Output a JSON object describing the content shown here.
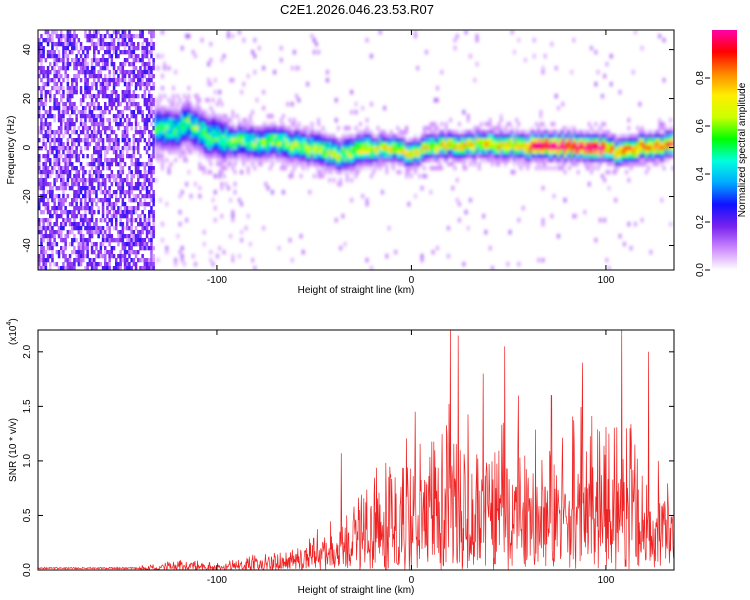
{
  "figure": {
    "title": "C2E1.2026.046.23.53.R07"
  },
  "chart_data": [
    {
      "type": "heatmap",
      "xlabel": "Height of straight line (km)",
      "ylabel": "Frequency (Hz)",
      "xlim": [
        -192,
        135
      ],
      "ylim": [
        -50,
        48
      ],
      "x_ticks": [
        -100,
        0,
        100
      ],
      "x_tick_labels": [
        "-100",
        "0",
        "100"
      ],
      "y_ticks": [
        -40,
        -20,
        0,
        20,
        40
      ],
      "y_tick_labels": [
        "-40",
        "-20",
        "0",
        "20",
        "40"
      ],
      "noise_region_end_km": -132,
      "ridge": {
        "x": [
          -132,
          -120,
          -115,
          -105,
          -95,
          -85,
          -70,
          -55,
          -45,
          -38,
          -30,
          -20,
          -10,
          0,
          10,
          20,
          30,
          45,
          60,
          75,
          90,
          100,
          105,
          110,
          120,
          135
        ],
        "y": [
          8,
          7,
          10,
          5,
          3,
          2,
          2,
          0,
          -1,
          -3,
          -2,
          -1,
          0,
          -3,
          0,
          1,
          1,
          1,
          0,
          1,
          0,
          0,
          -2,
          -1,
          0,
          1
        ]
      },
      "colorbar": {
        "label": "Normalized spectral amplitude",
        "range": [
          0.0,
          1.0
        ],
        "ticks": [
          0.0,
          0.2,
          0.4,
          0.6,
          0.8
        ],
        "tick_labels": [
          "0.0",
          "0.2",
          "0.4",
          "0.6",
          "0.8"
        ],
        "colors": [
          "#ffffff",
          "#cc88ff",
          "#7722ee",
          "#1111ff",
          "#00aaff",
          "#00ffdd",
          "#00ff00",
          "#ccff00",
          "#ffee00",
          "#ff8800",
          "#ff0000",
          "#ff00aa"
        ]
      }
    },
    {
      "type": "line",
      "xlabel": "Height of straight line (km)",
      "ylabel": "SNR (10 * v/v)",
      "scale_label": "(x10",
      "scale_exponent": "4",
      "scale_close": ")",
      "xlim": [
        -192,
        135
      ],
      "ylim": [
        0,
        2.2
      ],
      "x_ticks": [
        -100,
        0,
        100
      ],
      "x_tick_labels": [
        "-100",
        "0",
        "100"
      ],
      "y_ticks": [
        0.0,
        0.5,
        1.0,
        1.5,
        2.0
      ],
      "y_tick_labels": [
        "0.0",
        "0.5",
        "1.0",
        "1.5",
        "2.0"
      ],
      "series": [
        {
          "name": "SNR",
          "color": "#ee2222",
          "envelope": {
            "x": [
              -192,
              -150,
              -135,
              -120,
              -100,
              -80,
              -60,
              -45,
              -40,
              -30,
              -20,
              -10,
              0,
              10,
              20,
              30,
              40,
              50,
              60,
              70,
              80,
              90,
              100,
              110,
              120,
              135
            ],
            "y": [
              0.01,
              0.02,
              0.04,
              0.08,
              0.06,
              0.12,
              0.22,
              0.3,
              0.4,
              0.55,
              0.7,
              0.85,
              0.95,
              1.05,
              1.2,
              1.1,
              1.0,
              1.1,
              1.0,
              0.95,
              1.05,
              1.15,
              1.2,
              1.1,
              0.9,
              0.6
            ]
          },
          "peaks": [
            {
              "x": -36,
              "y": 1.07
            },
            {
              "x": 2,
              "y": 1.45
            },
            {
              "x": 20,
              "y": 2.2
            },
            {
              "x": 24,
              "y": 2.15
            },
            {
              "x": 37,
              "y": 1.8
            },
            {
              "x": 48,
              "y": 2.05
            },
            {
              "x": 55,
              "y": 1.6
            },
            {
              "x": 72,
              "y": 1.6
            },
            {
              "x": 88,
              "y": 1.9
            },
            {
              "x": 108,
              "y": 2.2
            },
            {
              "x": 122,
              "y": 2.0
            },
            {
              "x": 127,
              "y": 1.0
            }
          ]
        }
      ]
    }
  ]
}
